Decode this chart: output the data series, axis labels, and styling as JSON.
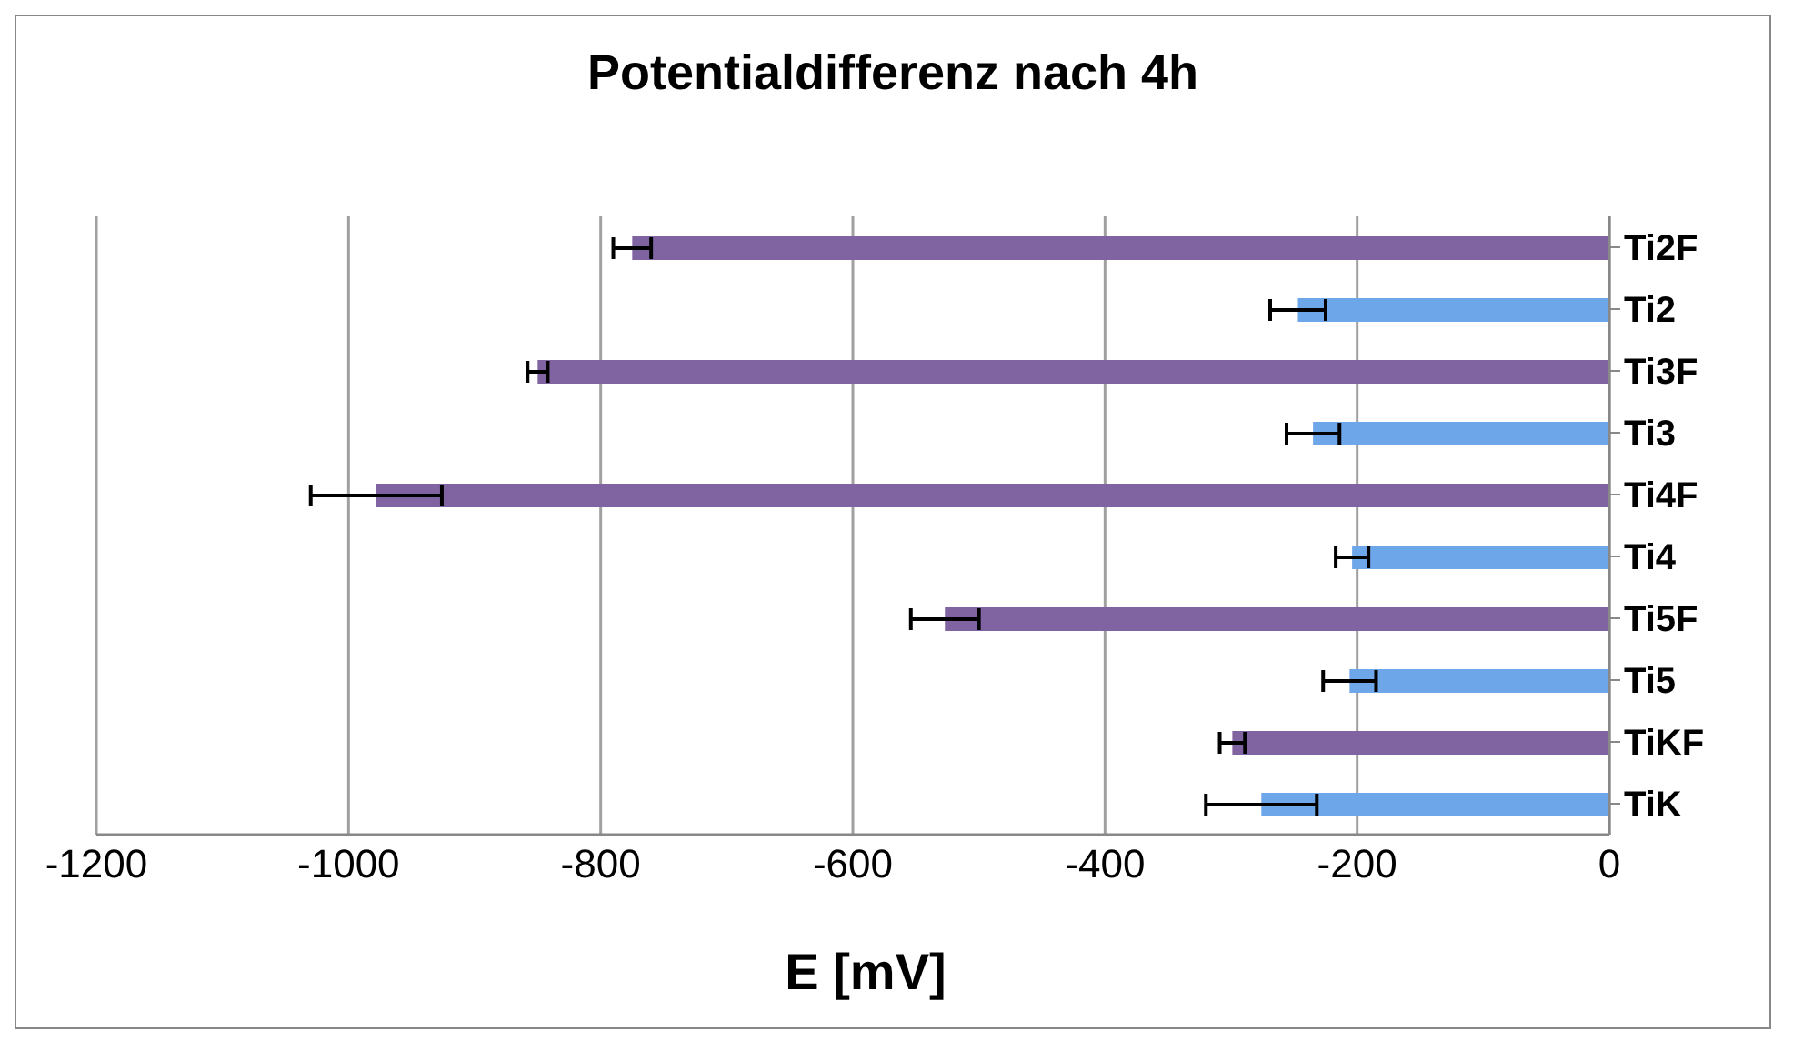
{
  "chart_data": {
    "type": "bar",
    "orientation": "horizontal",
    "title": "Potentialdifferenz nach 4h",
    "xlabel": "E [mV]",
    "categories": [
      "Ti2F",
      "Ti2",
      "Ti3F",
      "Ti3",
      "Ti4F",
      "Ti4",
      "Ti5F",
      "Ti5",
      "TiKF",
      "TiK"
    ],
    "values": [
      -775,
      -247,
      -850,
      -235,
      -978,
      -204,
      -527,
      -206,
      -299,
      -276
    ],
    "errors": [
      15,
      22,
      8,
      21,
      52,
      13,
      27,
      21,
      10,
      44
    ],
    "colors": [
      "#8064a2",
      "#6ea6ea",
      "#8064a2",
      "#6ea6ea",
      "#8064a2",
      "#6ea6ea",
      "#8064a2",
      "#6ea6ea",
      "#8064a2",
      "#6ea6ea"
    ],
    "xlim": [
      -1200,
      0
    ],
    "xticks": [
      -1200,
      -1000,
      -800,
      -600,
      -400,
      -200,
      0
    ],
    "grid": "x",
    "legend": false
  }
}
